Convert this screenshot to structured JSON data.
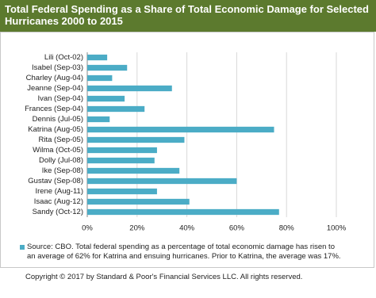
{
  "chart_data": {
    "type": "bar",
    "orientation": "horizontal",
    "title": "Total Federal Spending as a Share of Total Economic Damage for Selected Hurricanes 2000 to 2015",
    "categories": [
      "Lili (Oct-02)",
      "Isabel (Sep-03)",
      "Charley (Aug-04)",
      "Jeanne (Sep-04)",
      "Ivan (Sep-04)",
      "Frances (Sep-04)",
      "Dennis (Jul-05)",
      "Katrina (Aug-05)",
      "Rita (Sep-05)",
      "Wilma (Oct-05)",
      "Dolly (Jul-08)",
      "Ike (Sep-08)",
      "Gustav (Sep-08)",
      "Irene (Aug-11)",
      "Isaac (Aug-12)",
      "Sandy (Oct-12)"
    ],
    "series": [
      {
        "name": "Source: CBO. Total federal spending as a percentage of total economic damage has risen to an average of 62% for Katrina and ensuing hurricanes. Prior to Katrina, the average was 17%.",
        "color": "#4bacc6",
        "values": [
          8,
          16,
          10,
          34,
          15,
          23,
          9,
          75,
          39,
          28,
          27,
          37,
          60,
          28,
          41,
          77
        ]
      }
    ],
    "xlim": [
      0,
      100
    ],
    "xticks": [
      {
        "value": 0,
        "label": "0%"
      },
      {
        "value": 20,
        "label": "20%"
      },
      {
        "value": 40,
        "label": "40%"
      },
      {
        "value": 60,
        "label": "60%"
      },
      {
        "value": 80,
        "label": "80%"
      },
      {
        "value": 100,
        "label": "100%"
      }
    ],
    "grid": true,
    "copyright": "Copyright © 2017 by Standard & Poor's Financial Services LLC. All rights reserved."
  }
}
